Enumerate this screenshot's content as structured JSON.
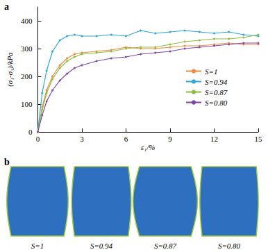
{
  "chart_data": {
    "type": "line",
    "title": "a",
    "x_label": "ε₁/%",
    "y_label": "(σ₁-σ₃)/kPa",
    "xlim": [
      0,
      15
    ],
    "xticks": [
      0,
      3,
      6,
      9,
      12,
      15
    ],
    "ylim": [
      0,
      450
    ],
    "yticks": [
      0,
      100,
      200,
      300,
      400
    ],
    "grid": false,
    "legend": "right",
    "marker": "circle",
    "x": [
      0,
      0.3,
      0.6,
      1,
      1.5,
      2,
      2.5,
      3,
      4,
      5,
      6,
      7,
      8,
      9,
      10,
      11,
      12,
      13,
      14,
      15
    ],
    "series": [
      {
        "name": "S=1",
        "color": "#f08a3c",
        "values": [
          0,
          90,
          150,
          200,
          240,
          265,
          280,
          285,
          290,
          295,
          305,
          300,
          300,
          305,
          310,
          310,
          315,
          320,
          315,
          315
        ]
      },
      {
        "name": "S=0.94",
        "color": "#2ba8d8",
        "values": [
          0,
          140,
          220,
          290,
          330,
          345,
          350,
          345,
          345,
          350,
          345,
          365,
          355,
          360,
          365,
          360,
          355,
          360,
          350,
          345
        ]
      },
      {
        "name": "S=0.87",
        "color": "#8cbf3f",
        "values": [
          0,
          80,
          140,
          190,
          230,
          255,
          270,
          280,
          285,
          290,
          300,
          305,
          305,
          315,
          325,
          330,
          335,
          335,
          340,
          350
        ]
      },
      {
        "name": "S=0.80",
        "color": "#7b4aa6",
        "values": [
          0,
          60,
          110,
          150,
          185,
          210,
          230,
          240,
          255,
          265,
          270,
          280,
          285,
          290,
          300,
          305,
          310,
          315,
          320,
          320
        ]
      }
    ]
  },
  "panel_b": {
    "label": "b",
    "specimens": [
      "S=1",
      "S=0.94",
      "S=0.87",
      "S=0.80"
    ]
  }
}
